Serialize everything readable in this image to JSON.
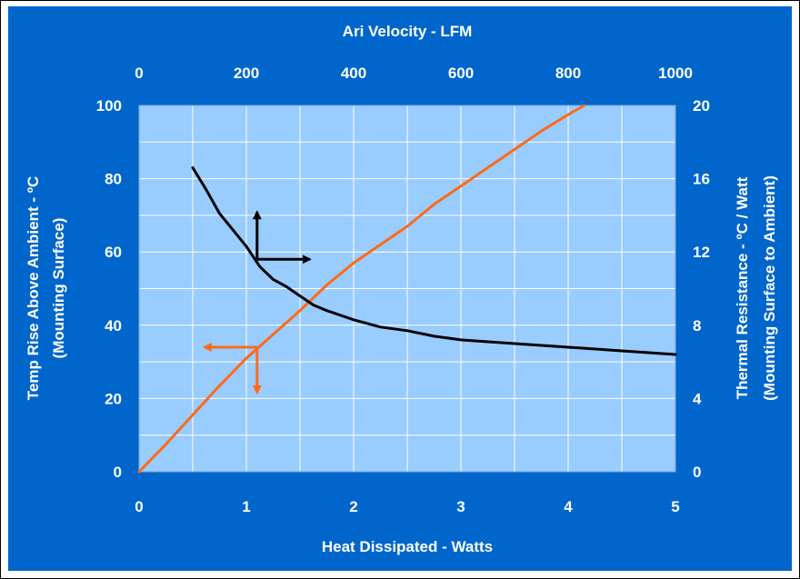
{
  "chart_data": {
    "type": "line",
    "title": "Ari Velocity - LFM",
    "xlabel": "Heat Dissipated - Watts",
    "ylabel": [
      "Temp Rise Above Ambient -  ºC",
      "(Mounting Surface)"
    ],
    "y2label": [
      "Thermal Resistance -  ºC / Watt",
      "(Mounting Surface to Ambient)"
    ],
    "x_bottom": {
      "min": 0,
      "max": 5,
      "ticks": [
        "0",
        "1",
        "2",
        "3",
        "4",
        "5"
      ]
    },
    "x_top": {
      "min": 0,
      "max": 1000,
      "ticks": [
        "0",
        "200",
        "400",
        "600",
        "800",
        "1000"
      ]
    },
    "y_left": {
      "min": 0,
      "max": 100,
      "ticks": [
        "0",
        "20",
        "40",
        "60",
        "80",
        "100"
      ]
    },
    "y_right": {
      "min": 0,
      "max": 20,
      "ticks": [
        "0",
        "4",
        "8",
        "12",
        "16",
        "20"
      ]
    },
    "grid": true,
    "series": [
      {
        "axes": "bottom-left",
        "color": "#FF6A1A",
        "points": [
          [
            0,
            0
          ],
          [
            0.25,
            7.5
          ],
          [
            0.5,
            15.5
          ],
          [
            0.75,
            23.5
          ],
          [
            1,
            31
          ],
          [
            1.25,
            37.5
          ],
          [
            1.5,
            44
          ],
          [
            1.75,
            51
          ],
          [
            2,
            57
          ],
          [
            2.25,
            62
          ],
          [
            2.5,
            67
          ],
          [
            2.75,
            73
          ],
          [
            3,
            78
          ],
          [
            3.25,
            83
          ],
          [
            3.5,
            88
          ],
          [
            3.75,
            93
          ],
          [
            4,
            97.5
          ],
          [
            4.15,
            100
          ]
        ]
      },
      {
        "axes": "top-right",
        "color": "#000000",
        "points": [
          [
            100,
            16.6
          ],
          [
            125,
            15.4
          ],
          [
            150,
            14.1
          ],
          [
            175,
            13.2
          ],
          [
            200,
            12.3
          ],
          [
            225,
            11.2
          ],
          [
            250,
            10.5
          ],
          [
            275,
            10.1
          ],
          [
            300,
            9.6
          ],
          [
            325,
            9.1
          ],
          [
            350,
            8.8
          ],
          [
            400,
            8.3
          ],
          [
            450,
            7.9
          ],
          [
            500,
            7.7
          ],
          [
            550,
            7.4
          ],
          [
            600,
            7.2
          ],
          [
            700,
            7.0
          ],
          [
            800,
            6.8
          ],
          [
            900,
            6.6
          ],
          [
            1000,
            6.4
          ]
        ]
      }
    ],
    "indicators": [
      {
        "color": "#000000",
        "at": [
          1.1,
          58
        ],
        "arrows": [
          "up",
          "right"
        ]
      },
      {
        "color": "#FF6A1A",
        "at": [
          1.1,
          34
        ],
        "arrows": [
          "left",
          "down"
        ]
      }
    ]
  }
}
